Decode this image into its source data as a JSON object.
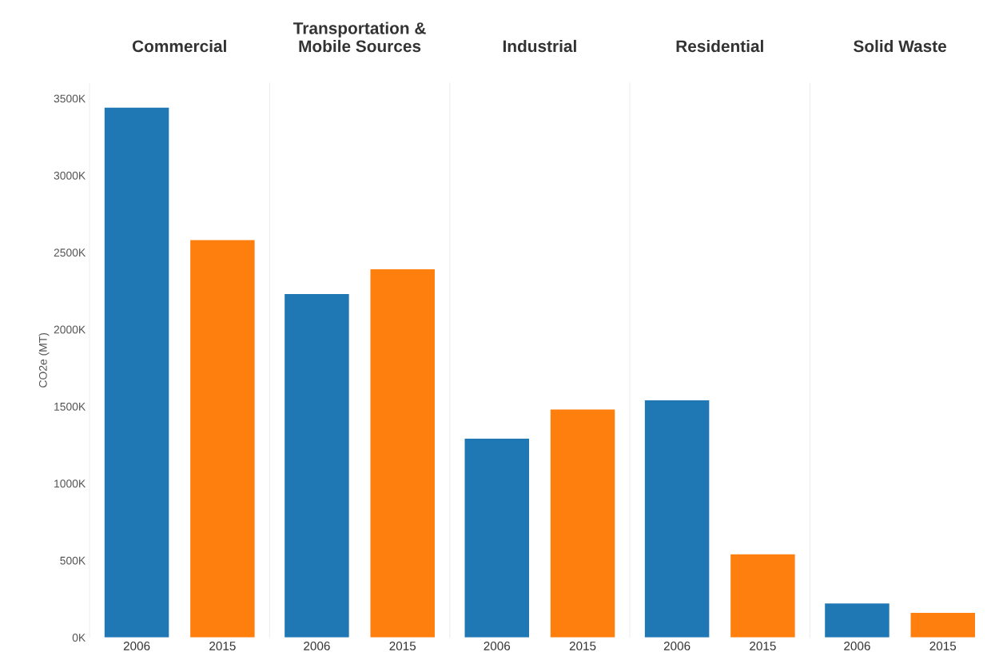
{
  "chart_data": [
    {
      "type": "bar",
      "title": "Commercial",
      "ylabel": "CO2e (MT)",
      "categories": [
        "2006",
        "2015"
      ],
      "values": [
        3440000,
        2580000
      ],
      "colors": [
        "#1f77b4",
        "#ff7f0e"
      ],
      "ylim": [
        0,
        3600000
      ],
      "yticks": [
        {
          "value": 0,
          "label": "0K"
        },
        {
          "value": 500000,
          "label": "500K"
        },
        {
          "value": 1000000,
          "label": "1000K"
        },
        {
          "value": 1500000,
          "label": "1500K"
        },
        {
          "value": 2000000,
          "label": "2000K"
        },
        {
          "value": 2500000,
          "label": "2500K"
        },
        {
          "value": 3000000,
          "label": "3000K"
        },
        {
          "value": 3500000,
          "label": "3500K"
        }
      ]
    },
    {
      "type": "bar",
      "title": "Transportation &\nMobile Sources",
      "categories": [
        "2006",
        "2015"
      ],
      "values": [
        2230000,
        2390000
      ],
      "colors": [
        "#1f77b4",
        "#ff7f0e"
      ],
      "ylim": [
        0,
        3600000
      ],
      "tick_labels": "x"
    },
    {
      "type": "bar",
      "title": "Industrial",
      "categories": [
        "2006",
        "2015"
      ],
      "values": [
        1290000,
        1480000
      ],
      "colors": [
        "#1f77b4",
        "#ff7f0e"
      ],
      "ylim": [
        0,
        3600000
      ],
      "tick_labels": "x"
    },
    {
      "type": "bar",
      "title": "Residential",
      "categories": [
        "2006",
        "2015"
      ],
      "values": [
        1540000,
        540000
      ],
      "colors": [
        "#1f77b4",
        "#ff7f0e"
      ],
      "ylim": [
        0,
        3600000
      ],
      "tick_labels": "x"
    },
    {
      "type": "bar",
      "title": "Solid Waste",
      "categories": [
        "2006",
        "2015"
      ],
      "values": [
        220000,
        160000
      ],
      "colors": [
        "#1f77b4",
        "#ff7f0e"
      ],
      "ylim": [
        0,
        3600000
      ],
      "tick_labels": "x"
    }
  ]
}
